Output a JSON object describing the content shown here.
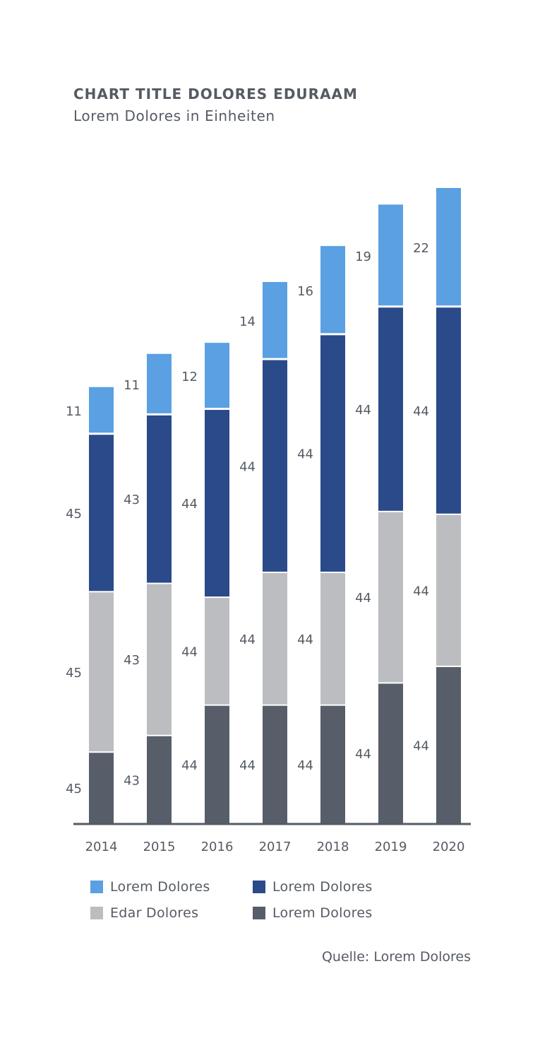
{
  "header": {
    "title": "CHART TITLE DOLORES EDURAAM",
    "subtitle": "Lorem Dolores in Einheiten"
  },
  "source": "Quelle: Lorem Dolores",
  "colors": {
    "light_blue": "#5aa0e2",
    "dark_blue": "#2a4a8a",
    "light_gray": "#bbbdc0",
    "dark_gray": "#575e69",
    "axis": "#555b63",
    "text": "#555b63"
  },
  "legend": {
    "items": [
      {
        "label": "Lorem Dolores",
        "color": "#5aa0e2"
      },
      {
        "label": "Lorem Dolores",
        "color": "#2a4a8a"
      },
      {
        "label": "Edar Dolores",
        "color": "#bbbdc0"
      },
      {
        "label": "Lorem Dolores",
        "color": "#575e69"
      }
    ]
  },
  "chart_data": {
    "type": "bar",
    "stacked": true,
    "categories": [
      "2014",
      "2015",
      "2016",
      "2017",
      "2018",
      "2019",
      "2020"
    ],
    "series": [
      {
        "name": "Lorem Dolores",
        "color": "#575e69",
        "values": [
          45,
          43,
          44,
          44,
          44,
          44,
          44
        ]
      },
      {
        "name": "Edar Dolores",
        "color": "#bbbdc0",
        "values": [
          45,
          43,
          44,
          44,
          44,
          44,
          44
        ]
      },
      {
        "name": "Lorem Dolores",
        "color": "#2a4a8a",
        "values": [
          45,
          43,
          44,
          44,
          44,
          44,
          44
        ]
      },
      {
        "name": "Lorem Dolores",
        "color": "#5aa0e2",
        "values": [
          11,
          11,
          12,
          14,
          16,
          19,
          22
        ]
      }
    ],
    "bar_extents": [
      [
        0,
        26,
        84,
        141,
        158
      ],
      [
        0,
        32,
        87,
        148,
        170
      ],
      [
        0,
        43,
        82,
        150,
        174
      ],
      [
        0,
        43,
        91,
        168,
        196
      ],
      [
        0,
        43,
        91,
        177,
        209
      ],
      [
        0,
        51,
        113,
        187,
        224
      ],
      [
        0,
        57,
        112,
        187,
        230
      ]
    ],
    "ylim": [
      0,
      230
    ],
    "grid": false,
    "legend_position": "bottom"
  }
}
